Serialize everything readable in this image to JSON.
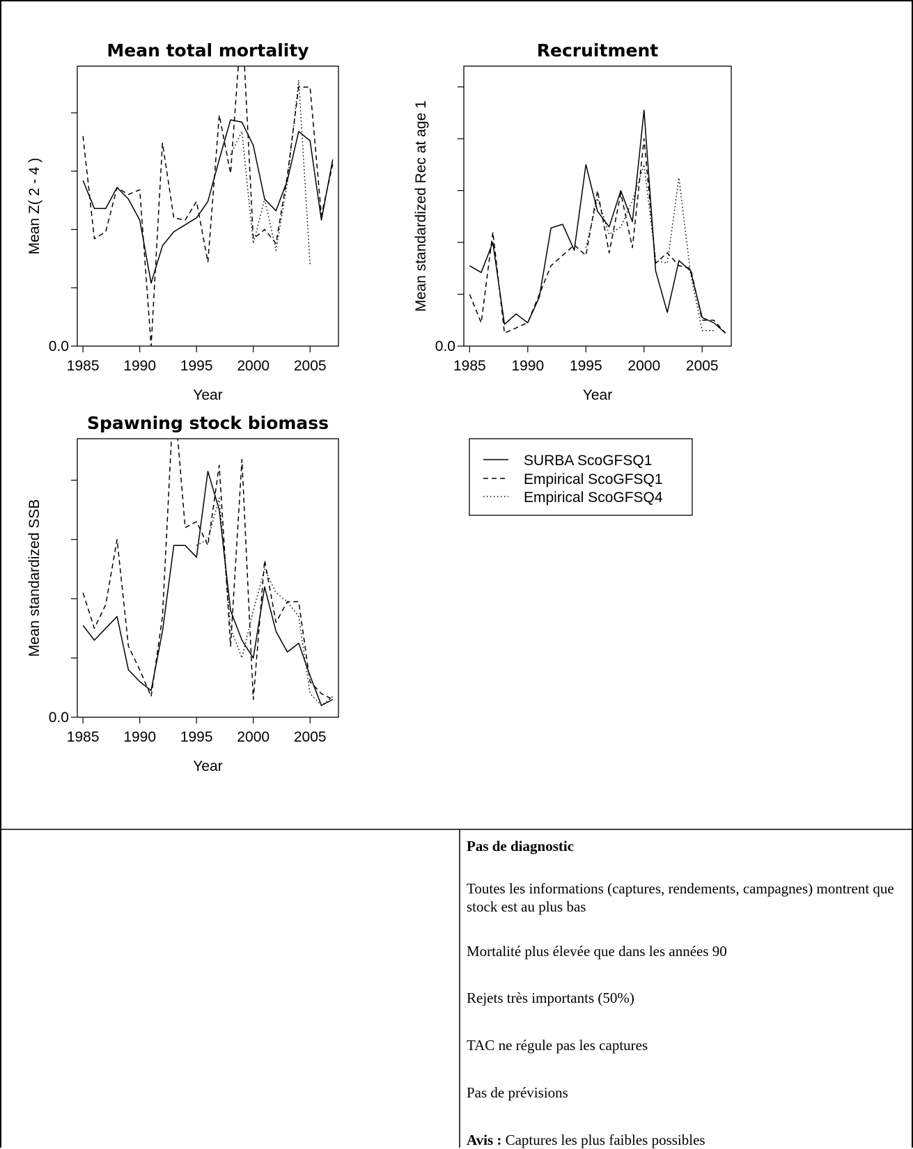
{
  "chart_data": [
    {
      "type": "line",
      "title": "Mean total mortality",
      "xlabel": "Year",
      "ylabel": "Mean Z( 2 - 4 )",
      "xlim": [
        1984.5,
        2007.5
      ],
      "ylim": [
        0.0,
        1.2
      ],
      "xticks": [
        1985,
        1990,
        1995,
        2000,
        2005
      ],
      "yticks": [
        {
          "v": 0.0,
          "label": "0.0"
        },
        {
          "v": 0.25,
          "label": ""
        },
        {
          "v": 0.5,
          "label": ""
        },
        {
          "v": 0.75,
          "label": ""
        },
        {
          "v": 1.0,
          "label": ""
        }
      ],
      "x": [
        1985,
        1986,
        1987,
        1988,
        1989,
        1990,
        1991,
        1992,
        1993,
        1994,
        1995,
        1996,
        1997,
        1998,
        1999,
        2000,
        2001,
        2002,
        2003,
        2004,
        2005,
        2006,
        2007
      ],
      "series": [
        {
          "name": "SURBA ScoGFSQ1",
          "style": "solid",
          "values": [
            0.71,
            0.59,
            0.59,
            0.68,
            0.63,
            0.54,
            0.27,
            0.43,
            0.49,
            0.52,
            0.55,
            0.62,
            0.8,
            0.97,
            0.96,
            0.86,
            0.63,
            0.58,
            0.71,
            0.92,
            0.88,
            0.54,
            0.8
          ]
        },
        {
          "name": "Empirical ScoGFSQ1",
          "style": "dashed",
          "values": [
            0.9,
            0.46,
            0.49,
            0.68,
            0.65,
            0.67,
            0.0,
            0.87,
            0.55,
            0.54,
            0.62,
            0.36,
            0.99,
            0.74,
            1.42,
            0.46,
            0.5,
            0.44,
            0.73,
            1.11,
            1.11,
            0.56,
            0.78
          ]
        },
        {
          "name": "Empirical ScoGFSQ4",
          "style": "dotted",
          "values": [
            null,
            null,
            null,
            null,
            null,
            null,
            null,
            null,
            null,
            null,
            null,
            null,
            null,
            0.82,
            0.92,
            0.44,
            0.63,
            0.41,
            0.7,
            1.14,
            0.35,
            null,
            null
          ]
        }
      ]
    },
    {
      "type": "line",
      "title": "Recruitment",
      "xlabel": "Year",
      "ylabel": "Mean standardized Rec at age 1",
      "xlim": [
        1984.5,
        2007.5
      ],
      "ylim": [
        0.0,
        5.4
      ],
      "xticks": [
        1985,
        1990,
        1995,
        2000,
        2005
      ],
      "yticks": [
        {
          "v": 0.0,
          "label": "0.0"
        },
        {
          "v": 1,
          "label": ""
        },
        {
          "v": 2,
          "label": ""
        },
        {
          "v": 3,
          "label": ""
        },
        {
          "v": 4,
          "label": ""
        },
        {
          "v": 5,
          "label": ""
        }
      ],
      "x": [
        1985,
        1986,
        1987,
        1988,
        1989,
        1990,
        1991,
        1992,
        1993,
        1994,
        1995,
        1996,
        1997,
        1998,
        1999,
        2000,
        2001,
        2002,
        2003,
        2004,
        2005,
        2006,
        2007
      ],
      "series": [
        {
          "name": "SURBA ScoGFSQ1",
          "style": "solid",
          "values": [
            1.55,
            1.42,
            2.0,
            0.42,
            0.62,
            0.45,
            0.95,
            2.28,
            2.35,
            1.85,
            3.5,
            2.6,
            2.3,
            3.0,
            2.4,
            4.55,
            1.45,
            0.65,
            1.65,
            1.45,
            0.55,
            0.45,
            0.25
          ]
        },
        {
          "name": "Empirical ScoGFSQ1",
          "style": "dashed",
          "values": [
            1.0,
            0.45,
            2.2,
            0.25,
            0.35,
            0.45,
            1.0,
            1.55,
            1.75,
            1.95,
            1.75,
            3.0,
            1.8,
            2.95,
            1.9,
            4.0,
            1.6,
            1.8,
            1.55,
            1.5,
            0.5,
            0.5,
            0.25
          ]
        },
        {
          "name": "Empirical ScoGFSQ4",
          "style": "dotted",
          "values": [
            null,
            null,
            null,
            null,
            null,
            null,
            null,
            null,
            null,
            null,
            1.9,
            2.85,
            2.15,
            2.3,
            2.8,
            3.5,
            1.65,
            1.6,
            3.25,
            1.4,
            0.3,
            0.3,
            null
          ]
        }
      ]
    },
    {
      "type": "line",
      "title": "Spawning stock biomass",
      "xlabel": "Year",
      "ylabel": "Mean standardized SSB",
      "xlim": [
        1984.5,
        2007.5
      ],
      "ylim": [
        0.0,
        4.7
      ],
      "xticks": [
        1985,
        1990,
        1995,
        2000,
        2005
      ],
      "yticks": [
        {
          "v": 0.0,
          "label": "0.0"
        },
        {
          "v": 1,
          "label": ""
        },
        {
          "v": 2,
          "label": ""
        },
        {
          "v": 3,
          "label": ""
        },
        {
          "v": 4,
          "label": ""
        }
      ],
      "x": [
        1985,
        1986,
        1987,
        1988,
        1989,
        1990,
        1991,
        1992,
        1993,
        1994,
        1995,
        1996,
        1997,
        1998,
        1999,
        2000,
        2001,
        2002,
        2003,
        2004,
        2005,
        2006,
        2007
      ],
      "series": [
        {
          "name": "SURBA ScoGFSQ1",
          "style": "solid",
          "values": [
            1.55,
            1.3,
            1.5,
            1.7,
            0.8,
            0.6,
            0.45,
            1.45,
            2.9,
            2.9,
            2.7,
            4.15,
            3.5,
            1.8,
            1.3,
            1.0,
            2.2,
            1.45,
            1.1,
            1.25,
            0.7,
            0.2,
            0.3
          ]
        },
        {
          "name": "Empirical ScoGFSQ1",
          "style": "dashed",
          "values": [
            2.1,
            1.5,
            1.9,
            3.0,
            1.2,
            0.8,
            0.35,
            1.7,
            5.5,
            3.2,
            3.3,
            2.9,
            4.25,
            1.2,
            4.35,
            0.3,
            2.65,
            1.6,
            1.95,
            1.95,
            0.6,
            0.4,
            0.3
          ]
        },
        {
          "name": "Empirical ScoGFSQ4",
          "style": "dotted",
          "values": [
            null,
            null,
            null,
            null,
            null,
            null,
            null,
            null,
            null,
            null,
            2.9,
            3.0,
            3.7,
            1.5,
            1.0,
            1.8,
            2.5,
            2.1,
            1.95,
            1.7,
            0.4,
            0.2,
            0.35
          ]
        }
      ]
    }
  ],
  "legend": {
    "items": [
      {
        "label": "SURBA ScoGFSQ1",
        "style": "solid"
      },
      {
        "label": "Empirical ScoGFSQ1",
        "style": "dashed"
      },
      {
        "label": "Empirical ScoGFSQ4",
        "style": "dotted"
      }
    ]
  },
  "text_panel": {
    "heading": "Pas de diagnostic",
    "paragraphs": [
      "Toutes les informations (captures, rendements, campagnes) montrent que stock est au plus bas",
      "Mortalité plus élevée que dans les années 90",
      "Rejets très importants (50%)",
      "TAC ne régule pas les captures",
      "Pas de prévisions"
    ],
    "advice_label": "Avis :",
    "advice_text": " Captures les plus faibles possibles"
  }
}
